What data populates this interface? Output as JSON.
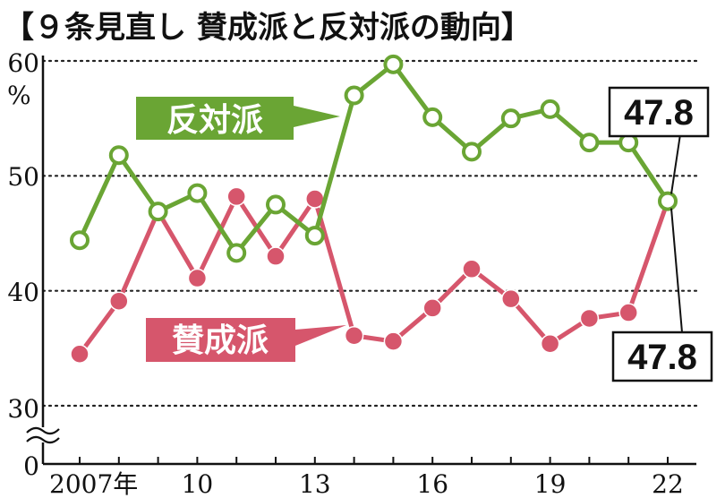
{
  "title": "【９条見直し 賛成派と反対派の動向】",
  "chart_data": {
    "type": "line",
    "title": "【９条見直し 賛成派と反対派の動向】",
    "ylabel": "%",
    "ylim": [
      30,
      60
    ],
    "y_axis_break": true,
    "y_ticks": [
      "60",
      "50",
      "40",
      "30",
      "0"
    ],
    "x": [
      2007,
      2008,
      2009,
      2010,
      2011,
      2012,
      2013,
      2014,
      2015,
      2016,
      2017,
      2018,
      2019,
      2020,
      2021,
      2022
    ],
    "x_tick_labels": [
      {
        "x": 2007,
        "label": "2007年"
      },
      {
        "x": 2010,
        "label": "10"
      },
      {
        "x": 2013,
        "label": "13"
      },
      {
        "x": 2016,
        "label": "16"
      },
      {
        "x": 2019,
        "label": "19"
      },
      {
        "x": 2022,
        "label": "22"
      }
    ],
    "grid": "horizontal dotted",
    "series": [
      {
        "name": "反対派",
        "color": "#6aa534",
        "marker": "hollow-circle",
        "values": [
          44.4,
          51.8,
          46.9,
          48.5,
          43.3,
          47.5,
          44.8,
          57.0,
          59.7,
          55.1,
          52.1,
          55.0,
          55.8,
          52.9,
          52.9,
          47.8
        ]
      },
      {
        "name": "賛成派",
        "color": "#d6566c",
        "marker": "filled-circle",
        "values": [
          34.5,
          39.1,
          46.9,
          41.1,
          48.2,
          43.0,
          48.0,
          36.1,
          35.6,
          38.5,
          41.9,
          39.3,
          35.4,
          37.6,
          38.1,
          47.8
        ]
      }
    ],
    "annotations": [
      {
        "series": "反対派",
        "x": 2022,
        "text": "47.8"
      },
      {
        "series": "賛成派",
        "x": 2022,
        "text": "47.8"
      }
    ]
  }
}
